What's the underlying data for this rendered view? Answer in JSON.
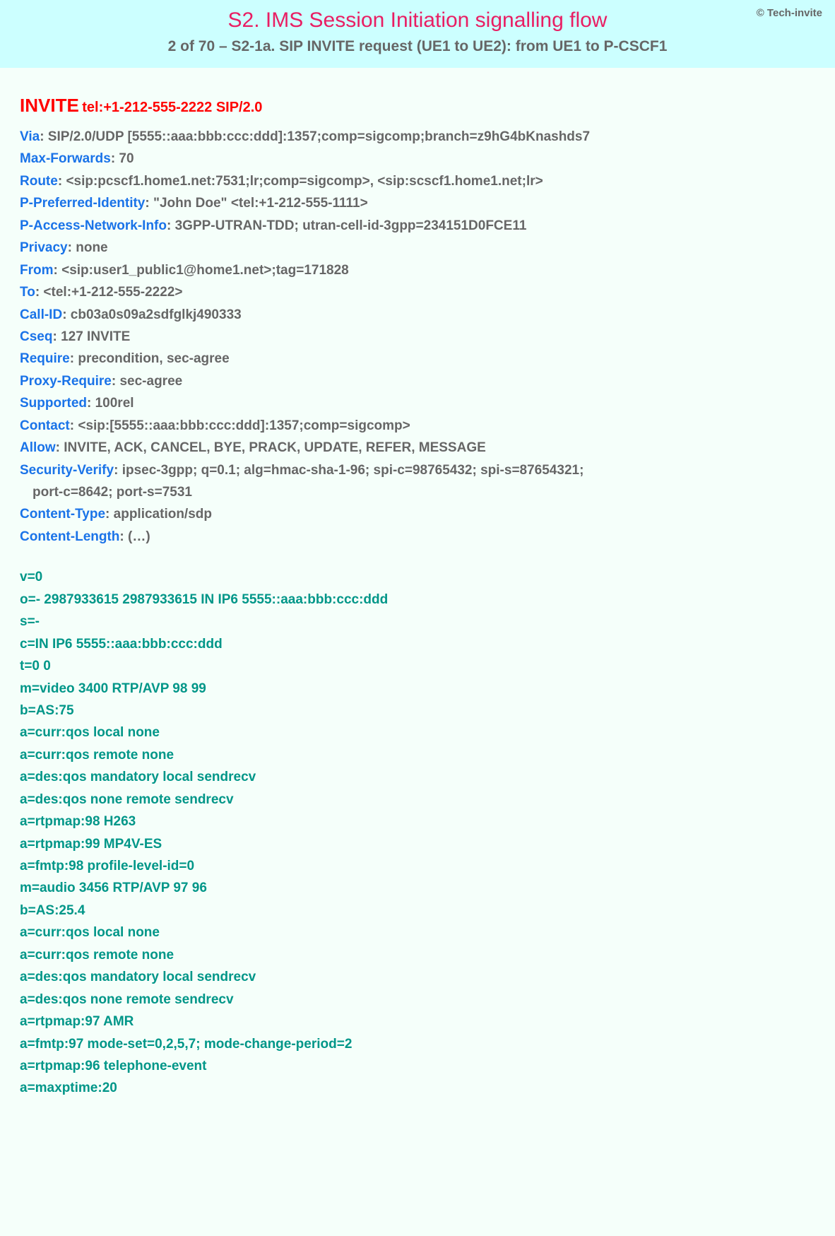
{
  "header": {
    "copyright": "© Tech-invite",
    "title": "S2. IMS Session Initiation signalling flow",
    "subtitle": "2 of 70 – S2-1a. SIP INVITE request (UE1 to UE2): from UE1 to P-CSCF1"
  },
  "invite": {
    "method": "INVITE",
    "uri": "tel:+1-212-555-2222 SIP/2.0"
  },
  "sip_headers": [
    {
      "key": "Via",
      "value": "SIP/2.0/UDP [5555::aaa:bbb:ccc:ddd]:1357;comp=sigcomp;branch=z9hG4bKnashds7"
    },
    {
      "key": "Max-Forwards",
      "value": "70"
    },
    {
      "key": "Route",
      "value": "<sip:pcscf1.home1.net:7531;lr;comp=sigcomp>, <sip:scscf1.home1.net;lr>"
    },
    {
      "key": "P-Preferred-Identity",
      "value": "\"John Doe\" <tel:+1-212-555-1111>"
    },
    {
      "key": "P-Access-Network-Info",
      "value": "3GPP-UTRAN-TDD; utran-cell-id-3gpp=234151D0FCE11"
    },
    {
      "key": "Privacy",
      "value": "none"
    },
    {
      "key": "From",
      "value": "<sip:user1_public1@home1.net>;tag=171828"
    },
    {
      "key": "To",
      "value": "<tel:+1-212-555-2222>"
    },
    {
      "key": "Call-ID",
      "value": "cb03a0s09a2sdfglkj490333"
    },
    {
      "key": "Cseq",
      "value": "127 INVITE"
    },
    {
      "key": "Require",
      "value": "precondition, sec-agree"
    },
    {
      "key": "Proxy-Require",
      "value": "sec-agree"
    },
    {
      "key": "Supported",
      "value": "100rel"
    },
    {
      "key": "Contact",
      "value": "<sip:[5555::aaa:bbb:ccc:ddd]:1357;comp=sigcomp>"
    },
    {
      "key": "Allow",
      "value": "INVITE, ACK, CANCEL, BYE, PRACK, UPDATE, REFER, MESSAGE"
    },
    {
      "key": "Security-Verify",
      "value": "ipsec-3gpp; q=0.1; alg=hmac-sha-1-96; spi-c=98765432; spi-s=87654321;",
      "cont": "port-c=8642; port-s=7531"
    },
    {
      "key": "Content-Type",
      "value": "application/sdp"
    },
    {
      "key": "Content-Length",
      "value": "(…)"
    }
  ],
  "sdp": [
    "v=0",
    "o=- 2987933615 2987933615 IN IP6 5555::aaa:bbb:ccc:ddd",
    "s=-",
    "c=IN IP6 5555::aaa:bbb:ccc:ddd",
    "t=0 0",
    "m=video 3400 RTP/AVP 98 99",
    "b=AS:75",
    "a=curr:qos local none",
    "a=curr:qos remote none",
    "a=des:qos mandatory local sendrecv",
    "a=des:qos none remote sendrecv",
    "a=rtpmap:98 H263",
    "a=rtpmap:99 MP4V-ES",
    "a=fmtp:98 profile-level-id=0",
    "m=audio 3456 RTP/AVP 97 96",
    "b=AS:25.4",
    "a=curr:qos local none",
    "a=curr:qos remote none",
    "a=des:qos mandatory local sendrecv",
    "a=des:qos none remote sendrecv",
    "a=rtpmap:97 AMR",
    "a=fmtp:97 mode-set=0,2,5,7; mode-change-period=2",
    "a=rtpmap:96 telephone-event",
    "a=maxptime:20"
  ],
  "colors": {
    "header_bg": "#ccffff",
    "body_bg": "#f5fffa",
    "title_color": "#e91e63",
    "subtitle_color": "#666666",
    "invite_color": "#ff0000",
    "header_key_color": "#1a73e8",
    "header_value_color": "#666666",
    "sdp_color": "#009688"
  },
  "typography": {
    "title_fontsize": 30,
    "subtitle_fontsize": 21,
    "invite_method_fontsize": 26,
    "body_fontsize": 19,
    "font_family": "Arial"
  }
}
